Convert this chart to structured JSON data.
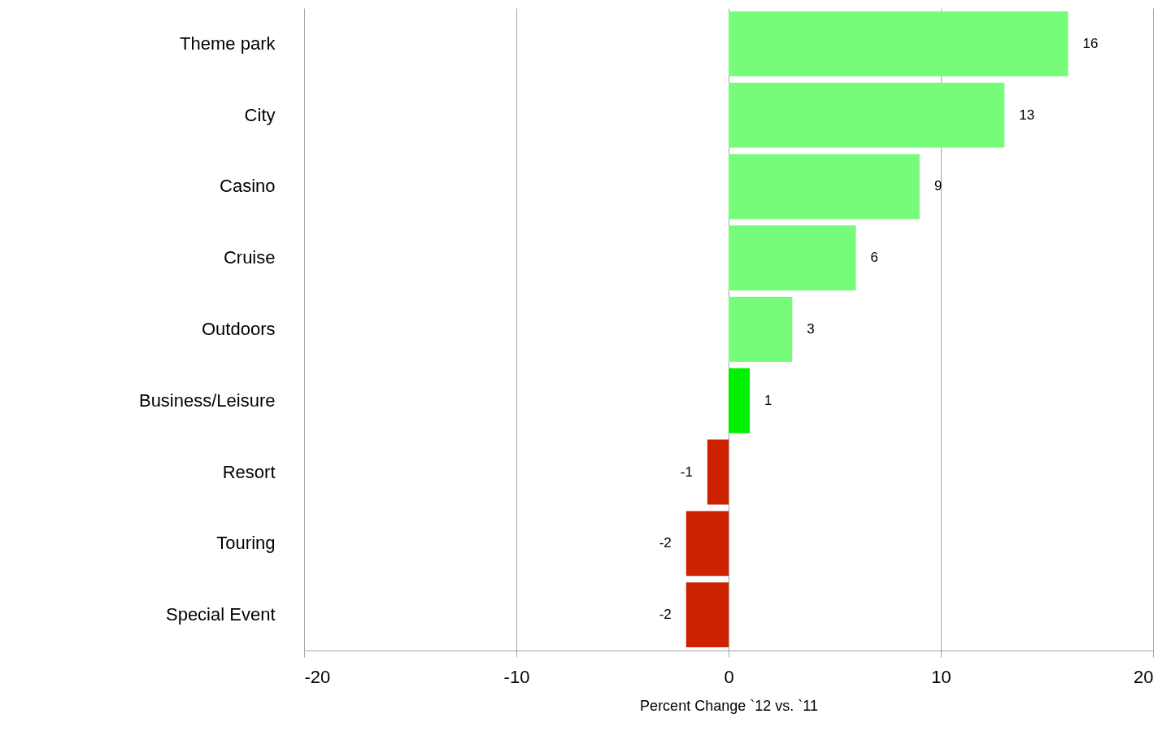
{
  "chart_data": {
    "type": "bar",
    "orientation": "horizontal",
    "xlabel": "Percent Change `12 vs. `11",
    "categories": [
      "Theme park",
      "City",
      "Casino",
      "Cruise",
      "Outdoors",
      "Business/Leisure",
      "Resort",
      "Touring",
      "Special Event"
    ],
    "values": [
      16,
      13,
      9,
      6,
      3,
      1,
      -1,
      -2,
      -2
    ],
    "colors": [
      "#77fb7b",
      "#77fb7b",
      "#77fb7b",
      "#77fb7b",
      "#77fb7b",
      "#00f000",
      "#cc2200",
      "#cc2200",
      "#cc2200"
    ],
    "xlim": [
      -20,
      20
    ],
    "xticks": [
      -20,
      -10,
      0,
      10,
      20
    ],
    "grid": "x",
    "data_labels": true
  }
}
